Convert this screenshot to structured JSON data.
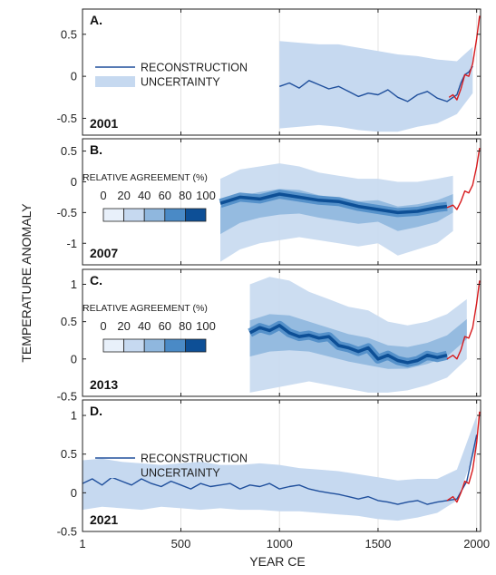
{
  "figure": {
    "ylabel": "TEMPERATURE ANOMALY",
    "xlabel": "YEAR CE",
    "x_ticks": [
      1,
      500,
      1000,
      1500,
      2000
    ]
  },
  "colors": {
    "reconstruction": "#1f4f9c",
    "uncertainty": "#c6d9f0",
    "instrumental": "#d7191c",
    "agreement_scale": [
      "#e8f0fa",
      "#c6d9f0",
      "#8fb7de",
      "#4a8ac6",
      "#0d4f96"
    ]
  },
  "chart_data": [
    {
      "type": "line",
      "panel_label": "A.",
      "year_label": "2001",
      "xlim": [
        1,
        2020
      ],
      "ylim": [
        -0.7,
        0.8
      ],
      "y_ticks": [
        -0.5,
        0,
        0.5
      ],
      "legend": {
        "line_label": "RECONSTRUCTION",
        "band_label": "UNCERTAINTY"
      },
      "series": [
        {
          "key": "reconstruction",
          "x": [
            1000,
            1050,
            1100,
            1150,
            1200,
            1250,
            1300,
            1350,
            1400,
            1450,
            1500,
            1550,
            1600,
            1650,
            1700,
            1750,
            1800,
            1850,
            1880,
            1900,
            1920,
            1940,
            1960,
            1980
          ],
          "values": [
            -0.12,
            -0.08,
            -0.14,
            -0.05,
            -0.1,
            -0.15,
            -0.12,
            -0.18,
            -0.24,
            -0.2,
            -0.22,
            -0.16,
            -0.25,
            -0.3,
            -0.22,
            -0.18,
            -0.26,
            -0.3,
            -0.25,
            -0.22,
            -0.08,
            0.02,
            0.05,
            0.12
          ]
        },
        {
          "key": "uncertainty",
          "x": [
            1000,
            1100,
            1200,
            1300,
            1400,
            1500,
            1600,
            1700,
            1800,
            1900,
            1980
          ],
          "lower": [
            -0.62,
            -0.6,
            -0.58,
            -0.6,
            -0.64,
            -0.66,
            -0.66,
            -0.6,
            -0.56,
            -0.45,
            -0.2
          ],
          "upper": [
            0.42,
            0.4,
            0.38,
            0.38,
            0.34,
            0.3,
            0.26,
            0.24,
            0.2,
            0.18,
            0.35
          ]
        },
        {
          "key": "instrumental",
          "x": [
            1860,
            1880,
            1900,
            1920,
            1940,
            1960,
            1980,
            2000,
            2015
          ],
          "values": [
            -0.25,
            -0.22,
            -0.28,
            -0.15,
            0.02,
            0.0,
            0.15,
            0.45,
            0.72
          ]
        }
      ]
    },
    {
      "type": "area",
      "panel_label": "B.",
      "year_label": "2007",
      "xlim": [
        1,
        2020
      ],
      "ylim": [
        -1.35,
        0.7
      ],
      "y_ticks": [
        -1,
        -0.5,
        0,
        0.5
      ],
      "legend": {
        "title": "RELATIVE AGREEMENT (%)",
        "ticks": [
          "0",
          "20",
          "40",
          "60",
          "80",
          "100"
        ]
      },
      "series": [
        {
          "key": "agreement_core",
          "x": [
            700,
            750,
            800,
            900,
            1000,
            1100,
            1200,
            1300,
            1400,
            1500,
            1600,
            1700,
            1800,
            1850
          ],
          "values": [
            -0.35,
            -0.3,
            -0.25,
            -0.28,
            -0.2,
            -0.25,
            -0.3,
            -0.32,
            -0.4,
            -0.45,
            -0.5,
            -0.48,
            -0.42,
            -0.4
          ]
        },
        {
          "key": "agreement_envelope",
          "x": [
            700,
            800,
            900,
            1000,
            1100,
            1200,
            1300,
            1400,
            1500,
            1600,
            1700,
            1800,
            1880
          ],
          "lower": [
            -1.3,
            -1.1,
            -1.0,
            -0.95,
            -0.9,
            -0.95,
            -1.0,
            -1.05,
            -1.0,
            -1.2,
            -1.1,
            -1.0,
            -0.8
          ],
          "upper": [
            0.05,
            0.2,
            0.25,
            0.3,
            0.25,
            0.15,
            0.1,
            0.05,
            0.05,
            0.0,
            0.0,
            0.05,
            0.1
          ]
        },
        {
          "key": "instrumental",
          "x": [
            1850,
            1880,
            1900,
            1920,
            1940,
            1960,
            1980,
            2000,
            2015
          ],
          "values": [
            -0.42,
            -0.38,
            -0.45,
            -0.32,
            -0.15,
            -0.18,
            -0.05,
            0.25,
            0.55
          ]
        }
      ]
    },
    {
      "type": "area",
      "panel_label": "C.",
      "year_label": "2013",
      "xlim": [
        1,
        2020
      ],
      "ylim": [
        -0.5,
        1.2
      ],
      "y_ticks": [
        -0.5,
        0,
        0.5,
        1
      ],
      "legend": {
        "title": "RELATIVE AGREEMENT (%)",
        "ticks": [
          "0",
          "20",
          "40",
          "60",
          "80",
          "100"
        ]
      },
      "series": [
        {
          "key": "agreement_core",
          "x": [
            850,
            900,
            950,
            1000,
            1050,
            1100,
            1150,
            1200,
            1250,
            1300,
            1350,
            1400,
            1450,
            1500,
            1550,
            1600,
            1650,
            1700,
            1750,
            1800,
            1850
          ],
          "values": [
            0.35,
            0.42,
            0.38,
            0.45,
            0.35,
            0.3,
            0.32,
            0.28,
            0.3,
            0.18,
            0.15,
            0.1,
            0.15,
            0.0,
            0.05,
            -0.02,
            -0.05,
            -0.02,
            0.05,
            0.02,
            0.05
          ]
        },
        {
          "key": "agreement_envelope",
          "x": [
            850,
            950,
            1050,
            1150,
            1250,
            1350,
            1450,
            1550,
            1650,
            1750,
            1850,
            1950
          ],
          "lower": [
            -0.45,
            -0.4,
            -0.35,
            -0.3,
            -0.35,
            -0.4,
            -0.45,
            -0.45,
            -0.42,
            -0.35,
            -0.25,
            0.0
          ],
          "upper": [
            1.0,
            1.1,
            1.05,
            0.9,
            0.8,
            0.7,
            0.65,
            0.5,
            0.45,
            0.5,
            0.6,
            0.8
          ]
        },
        {
          "key": "instrumental",
          "x": [
            1850,
            1880,
            1900,
            1920,
            1940,
            1960,
            1980,
            2000,
            2015
          ],
          "values": [
            0.0,
            0.05,
            0.0,
            0.12,
            0.3,
            0.28,
            0.42,
            0.75,
            1.05
          ]
        }
      ]
    },
    {
      "type": "line",
      "panel_label": "D.",
      "year_label": "2021",
      "xlim": [
        1,
        2020
      ],
      "ylim": [
        -0.5,
        1.2
      ],
      "y_ticks": [
        -0.5,
        0,
        0.5,
        1
      ],
      "legend": {
        "line_label": "RECONSTRUCTION",
        "band_label": "UNCERTAINTY"
      },
      "series": [
        {
          "key": "reconstruction",
          "x": [
            1,
            50,
            100,
            150,
            200,
            250,
            300,
            350,
            400,
            450,
            500,
            550,
            600,
            650,
            700,
            750,
            800,
            850,
            900,
            950,
            1000,
            1050,
            1100,
            1150,
            1200,
            1250,
            1300,
            1350,
            1400,
            1450,
            1500,
            1550,
            1600,
            1650,
            1700,
            1750,
            1800,
            1850,
            1900,
            1950,
            2000
          ],
          "values": [
            0.12,
            0.18,
            0.1,
            0.2,
            0.15,
            0.1,
            0.18,
            0.12,
            0.08,
            0.15,
            0.1,
            0.05,
            0.12,
            0.08,
            0.1,
            0.12,
            0.05,
            0.1,
            0.08,
            0.12,
            0.05,
            0.08,
            0.1,
            0.05,
            0.02,
            0.0,
            -0.02,
            -0.05,
            -0.08,
            -0.05,
            -0.1,
            -0.12,
            -0.15,
            -0.12,
            -0.1,
            -0.15,
            -0.12,
            -0.1,
            -0.08,
            0.15,
            0.75
          ]
        },
        {
          "key": "uncertainty",
          "x": [
            1,
            100,
            200,
            300,
            400,
            500,
            600,
            700,
            800,
            900,
            1000,
            1100,
            1200,
            1300,
            1400,
            1500,
            1600,
            1700,
            1800,
            1900,
            2000
          ],
          "lower": [
            -0.22,
            -0.18,
            -0.2,
            -0.22,
            -0.18,
            -0.2,
            -0.22,
            -0.2,
            -0.22,
            -0.22,
            -0.24,
            -0.24,
            -0.26,
            -0.28,
            -0.3,
            -0.34,
            -0.36,
            -0.32,
            -0.26,
            -0.1,
            0.6
          ],
          "upper": [
            0.42,
            0.44,
            0.4,
            0.38,
            0.36,
            0.38,
            0.4,
            0.36,
            0.36,
            0.38,
            0.36,
            0.32,
            0.3,
            0.28,
            0.24,
            0.2,
            0.16,
            0.18,
            0.18,
            0.3,
            1.0
          ]
        },
        {
          "key": "instrumental",
          "x": [
            1850,
            1880,
            1900,
            1920,
            1940,
            1960,
            1980,
            2000,
            2015
          ],
          "values": [
            -0.1,
            -0.05,
            -0.12,
            0.0,
            0.15,
            0.12,
            0.3,
            0.65,
            1.05
          ]
        }
      ]
    }
  ]
}
